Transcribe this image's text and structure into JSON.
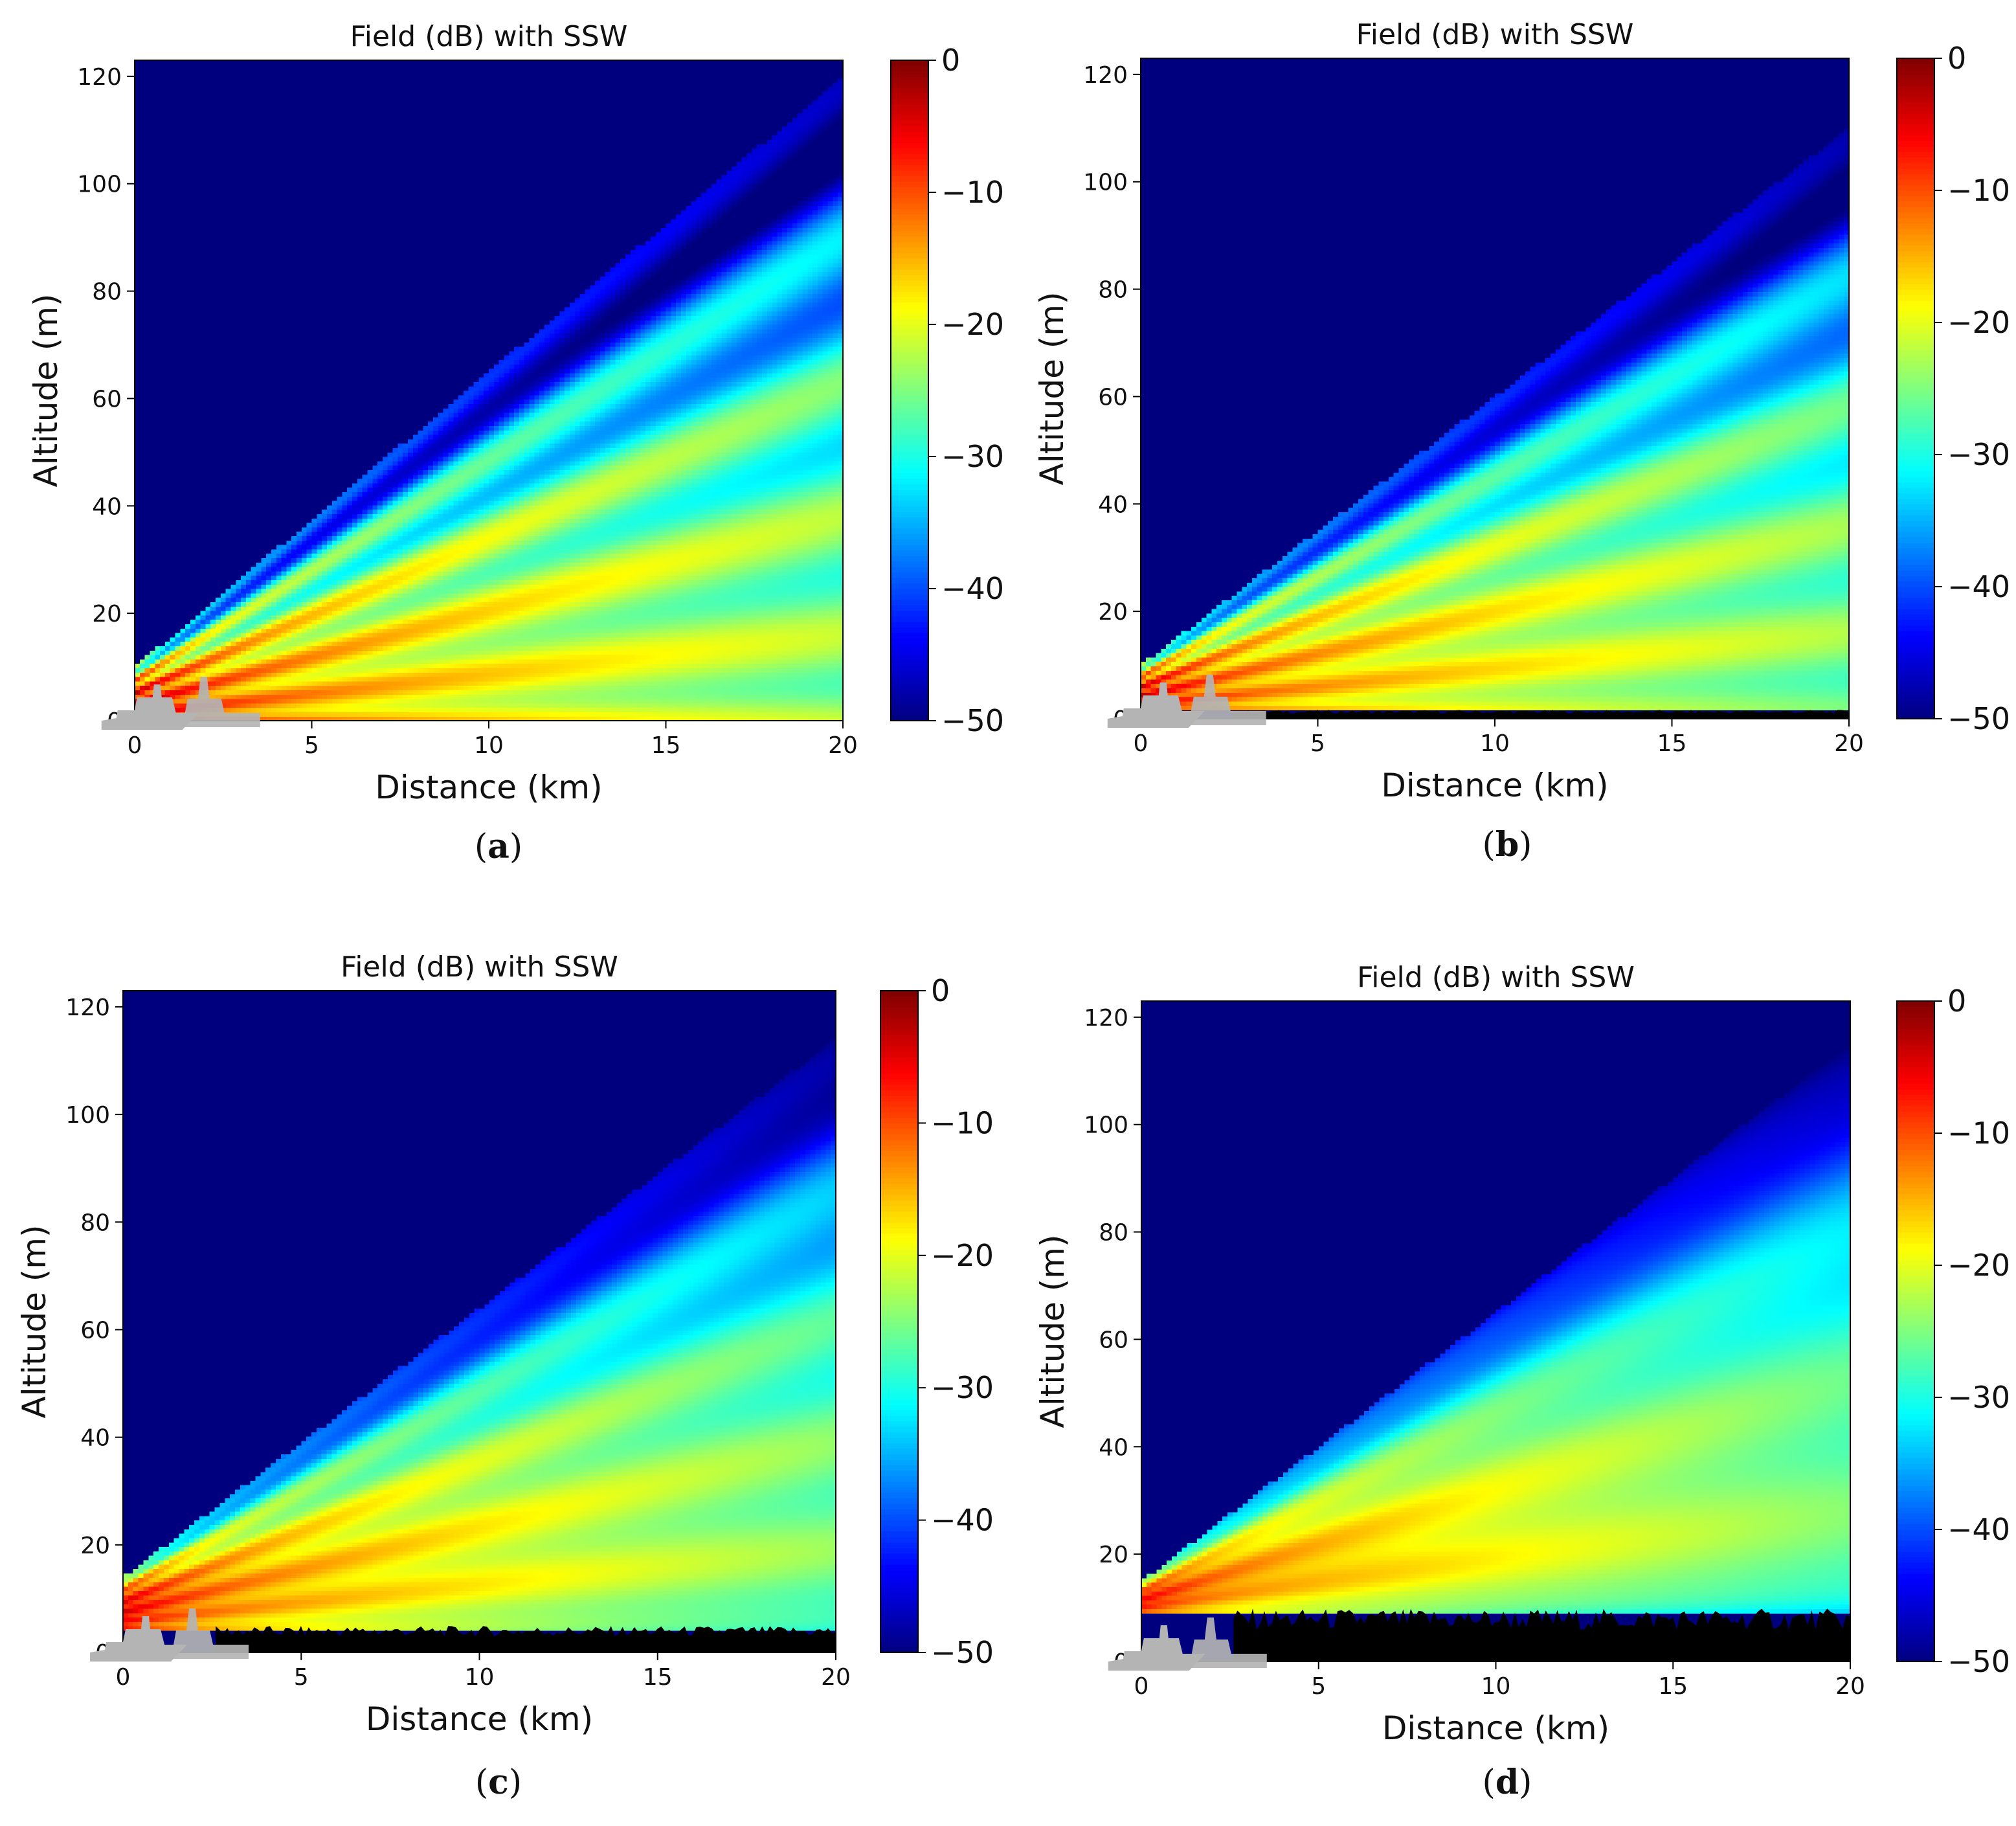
{
  "colors": {
    "background": "#ffffff",
    "axis": "#000000",
    "low_field": "#00008f",
    "ground": "#000000",
    "ship": "#b4b4b4"
  },
  "colormap": {
    "name": "jet",
    "stops": [
      "#00007f",
      "#0000ff",
      "#007fff",
      "#00ffff",
      "#7fff7f",
      "#ffff00",
      "#ff7f00",
      "#ff0000",
      "#7f0000"
    ]
  },
  "chart_data": [
    {
      "id": "a",
      "type": "heatmap",
      "title": "Field (dB) with SSW",
      "xlabel": "Distance (km)",
      "ylabel": "Altitude (m)",
      "xlim": [
        0,
        20
      ],
      "ylim": [
        0,
        123
      ],
      "xticks": [
        0,
        5,
        10,
        15,
        20
      ],
      "yticks": [
        0,
        20,
        40,
        60,
        80,
        100,
        120
      ],
      "colorbar": {
        "label": "",
        "range": [
          -50,
          0
        ],
        "ticks": [
          0,
          -10,
          -20,
          -30,
          -40,
          -50
        ]
      },
      "caption": "(a)",
      "source": {
        "height_m": 10,
        "peak_dB": -3
      },
      "beam": {
        "upper_edge_slope_m_per_km": 5.5,
        "lobe_count": 5,
        "fringe_depth_dB": 16,
        "ground_loss_dB": 0,
        "field_decay_dB_per_km": 0.35
      },
      "duct_layer": {
        "top_m": 0,
        "level_dB": -50
      }
    },
    {
      "id": "b",
      "type": "heatmap",
      "title": "Field (dB) with SSW",
      "xlabel": "Distance (km)",
      "ylabel": "Altitude (m)",
      "xlim": [
        0,
        20
      ],
      "ylim": [
        0,
        123
      ],
      "xticks": [
        0,
        5,
        10,
        15,
        20
      ],
      "yticks": [
        0,
        20,
        40,
        60,
        80,
        100,
        120
      ],
      "colorbar": {
        "label": "",
        "range": [
          -50,
          0
        ],
        "ticks": [
          0,
          -10,
          -20,
          -30,
          -40,
          -50
        ]
      },
      "caption": "(b)",
      "source": {
        "height_m": 10,
        "peak_dB": -3
      },
      "beam": {
        "upper_edge_slope_m_per_km": 5.0,
        "lobe_count": 5,
        "fringe_depth_dB": 13,
        "ground_loss_dB": 3,
        "field_decay_dB_per_km": 0.4
      },
      "duct_layer": {
        "top_m": 1.5,
        "level_dB": -50
      }
    },
    {
      "id": "c",
      "type": "heatmap",
      "title": "Field (dB) with SSW",
      "xlabel": "Distance (km)",
      "ylabel": "Altitude (m)",
      "xlim": [
        0,
        20
      ],
      "ylim": [
        0,
        123
      ],
      "xticks": [
        0,
        5,
        10,
        15,
        20
      ],
      "yticks": [
        0,
        20,
        40,
        60,
        80,
        100,
        120
      ],
      "colorbar": {
        "label": "",
        "range": [
          -50,
          0
        ],
        "ticks": [
          0,
          -10,
          -20,
          -30,
          -40,
          -50
        ]
      },
      "caption": "(c)",
      "source": {
        "height_m": 14,
        "peak_dB": -3
      },
      "beam": {
        "upper_edge_slope_m_per_km": 5.0,
        "lobe_count": 5,
        "fringe_depth_dB": 8,
        "ground_loss_dB": 6,
        "field_decay_dB_per_km": 0.45
      },
      "duct_layer": {
        "top_m": 4.5,
        "level_dB": -50
      }
    },
    {
      "id": "d",
      "type": "heatmap",
      "title": "Field (dB) with SSW",
      "xlabel": "Distance (km)",
      "ylabel": "Altitude (m)",
      "xlim": [
        0,
        20
      ],
      "ylim": [
        0,
        123
      ],
      "xticks": [
        0,
        5,
        10,
        15,
        20
      ],
      "yticks": [
        0,
        20,
        40,
        60,
        80,
        100,
        120
      ],
      "colorbar": {
        "label": "",
        "range": [
          -50,
          0
        ],
        "ticks": [
          0,
          -10,
          -20,
          -30,
          -40,
          -50
        ]
      },
      "caption": "(d)",
      "source": {
        "height_m": 15,
        "peak_dB": -3
      },
      "beam": {
        "upper_edge_slope_m_per_km": 5.0,
        "lobe_count": 4,
        "fringe_depth_dB": 5,
        "ground_loss_dB": 10,
        "field_decay_dB_per_km": 0.5
      },
      "duct_layer": {
        "top_m": 9,
        "level_dB": -50
      }
    }
  ]
}
